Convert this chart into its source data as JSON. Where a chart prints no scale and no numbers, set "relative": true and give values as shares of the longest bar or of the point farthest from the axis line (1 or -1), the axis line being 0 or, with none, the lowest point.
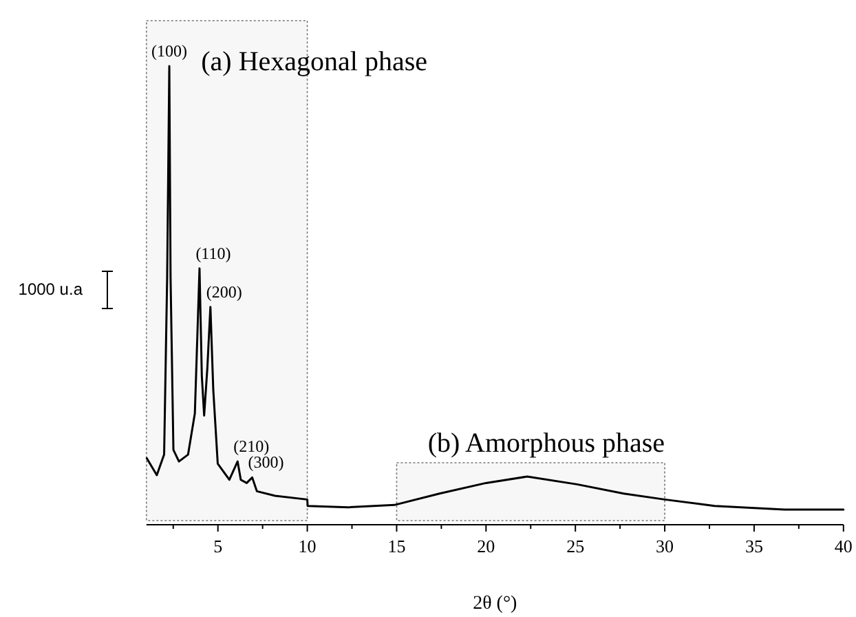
{
  "chart_data": {
    "type": "line",
    "xlabel": "2θ (°)",
    "relative": true,
    "color": "#000000",
    "x": [
      1.02,
      1.58,
      1.99,
      2.16,
      2.28,
      2.35,
      2.51,
      2.82,
      3.33,
      3.71,
      3.97,
      4.1,
      4.23,
      4.41,
      4.58,
      4.74,
      4.99,
      5.64,
      6.1,
      6.28,
      6.61,
      6.92,
      7.18,
      8.2,
      10.0,
      10.02,
      12.3,
      14.87,
      17.4,
      20.0,
      22.3,
      25.1,
      27.7,
      30.0,
      32.8,
      36.7,
      40.0
    ],
    "values": [
      0.145,
      0.108,
      0.153,
      0.54,
      1.0,
      0.54,
      0.163,
      0.138,
      0.153,
      0.243,
      0.559,
      0.324,
      0.238,
      0.343,
      0.475,
      0.294,
      0.133,
      0.098,
      0.138,
      0.098,
      0.091,
      0.103,
      0.073,
      0.063,
      0.055,
      0.041,
      0.038,
      0.043,
      0.068,
      0.091,
      0.105,
      0.088,
      0.068,
      0.055,
      0.041,
      0.033,
      0.033
    ],
    "xlim": [
      1,
      40
    ],
    "xticks": [
      {
        "value": 2.5,
        "label": null
      },
      5,
      {
        "value": 7.5,
        "label": null
      },
      10,
      {
        "value": 12.5,
        "label": null
      },
      15,
      {
        "value": 17.5,
        "label": null
      },
      20,
      {
        "value": 22.5,
        "label": null
      },
      25,
      {
        "value": 27.5,
        "label": null
      },
      30,
      {
        "value": 32.5,
        "label": null
      },
      35,
      {
        "value": 37.5,
        "label": null
      },
      40
    ],
    "annotations": [
      "1000 u.a",
      {
        "text": "(100)",
        "x": 2.28,
        "y": 1.0
      },
      {
        "text": "(110)",
        "x": 3.97,
        "y": 0.559
      },
      {
        "text": "(200)",
        "x": 4.58,
        "y": 0.475
      },
      {
        "text": "(210)",
        "x": 6.1,
        "y": 0.138
      },
      {
        "text": "(300)",
        "x": 6.92,
        "y": 0.103
      }
    ],
    "bands": [
      {
        "axis": "x",
        "from": 1,
        "to": 10,
        "label": "(a) Hexagonal phase"
      },
      {
        "axis": "x",
        "from": 15,
        "to": 30,
        "label": "(b) Amorphous phase"
      }
    ]
  }
}
